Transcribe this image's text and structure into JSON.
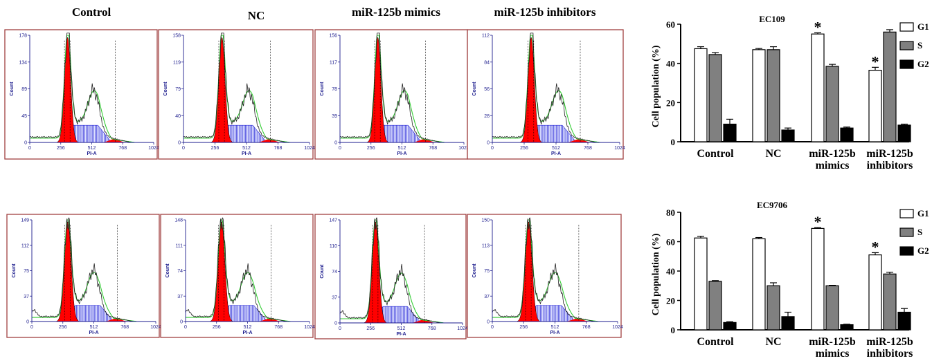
{
  "column_headers": [
    "Control",
    "NC",
    "miR-125b mimics",
    "miR-125b inhibitors"
  ],
  "flow_panels": {
    "xlabel": "PI-A",
    "ylabel": "Count",
    "xticks": [
      "0",
      "256",
      "512",
      "768",
      "1024"
    ],
    "rows": [
      [
        {
          "yticks": [
            "0",
            "45",
            "89",
            "134",
            "178"
          ]
        },
        {
          "yticks": [
            "0",
            "40",
            "79",
            "119",
            "158"
          ]
        },
        {
          "yticks": [
            "0",
            "39",
            "78",
            "117",
            "156"
          ]
        },
        {
          "yticks": [
            "0",
            "28",
            "56",
            "84",
            "112"
          ]
        }
      ],
      [
        {
          "yticks": [
            "0",
            "37",
            "75",
            "112",
            "149"
          ]
        },
        {
          "yticks": [
            "0",
            "37",
            "74",
            "111",
            "148"
          ]
        },
        {
          "yticks": [
            "0",
            "37",
            "74",
            "110",
            "147"
          ]
        },
        {
          "yticks": [
            "0",
            "37",
            "75",
            "113",
            "150"
          ]
        }
      ]
    ]
  },
  "colors": {
    "panel_border": "#a04040",
    "g1_fill": "#ff0000",
    "s_hatch": "#2b2bd6",
    "fit_line": "#33cc33",
    "histogram": "#222222",
    "bar_g1": "#ffffff",
    "bar_s": "#808080",
    "bar_g2": "#000000"
  },
  "chart_data": [
    {
      "type": "bar",
      "title": "EC109",
      "ylabel": "Cell population (%)",
      "ylim": [
        0,
        60
      ],
      "yticks": [
        0,
        20,
        40,
        60
      ],
      "categories": [
        "Control",
        "NC",
        "miR-125b mimics",
        "miR-125b inhibitors"
      ],
      "category_lines": [
        [
          "Control"
        ],
        [
          "NC"
        ],
        [
          "miR-125b",
          "mimics"
        ],
        [
          "miR-125b",
          "inhibitors"
        ]
      ],
      "series": [
        {
          "name": "G1",
          "values": [
            47.5,
            47,
            55,
            36.5
          ],
          "errors": [
            1,
            0.6,
            0.6,
            1.5
          ]
        },
        {
          "name": "S",
          "values": [
            44.5,
            47,
            38.5,
            56
          ],
          "errors": [
            1,
            1.5,
            1,
            1.2
          ]
        },
        {
          "name": "G2",
          "values": [
            9,
            6,
            7,
            8.5
          ],
          "errors": [
            2.5,
            1,
            0.5,
            0.5
          ]
        }
      ],
      "significance": [
        {
          "category": 2,
          "series": 0,
          "label": "*"
        },
        {
          "category": 3,
          "series": 0,
          "label": "*"
        }
      ],
      "legend": "right"
    },
    {
      "type": "bar",
      "title": "EC9706",
      "ylabel": "Cell population (%)",
      "ylim": [
        0,
        80
      ],
      "yticks": [
        0,
        20,
        40,
        60,
        80
      ],
      "categories": [
        "Control",
        "NC",
        "miR-125b mimics",
        "miR-125b inhibitors"
      ],
      "category_lines": [
        [
          "Control"
        ],
        [
          "NC"
        ],
        [
          "miR-125b",
          "mimics"
        ],
        [
          "miR-125b",
          "inhibitors"
        ]
      ],
      "series": [
        {
          "name": "G1",
          "values": [
            62.5,
            62,
            69,
            51
          ],
          "errors": [
            1.2,
            0.8,
            0.6,
            1.5
          ]
        },
        {
          "name": "S",
          "values": [
            33,
            30,
            30,
            38
          ],
          "errors": [
            0.5,
            2,
            0.3,
            1.2
          ]
        },
        {
          "name": "G2",
          "values": [
            5,
            9,
            3.5,
            12
          ],
          "errors": [
            0.5,
            3,
            0.3,
            2.5
          ]
        }
      ],
      "significance": [
        {
          "category": 2,
          "series": 0,
          "label": "*"
        },
        {
          "category": 3,
          "series": 0,
          "label": "*"
        }
      ],
      "legend": "right"
    }
  ]
}
